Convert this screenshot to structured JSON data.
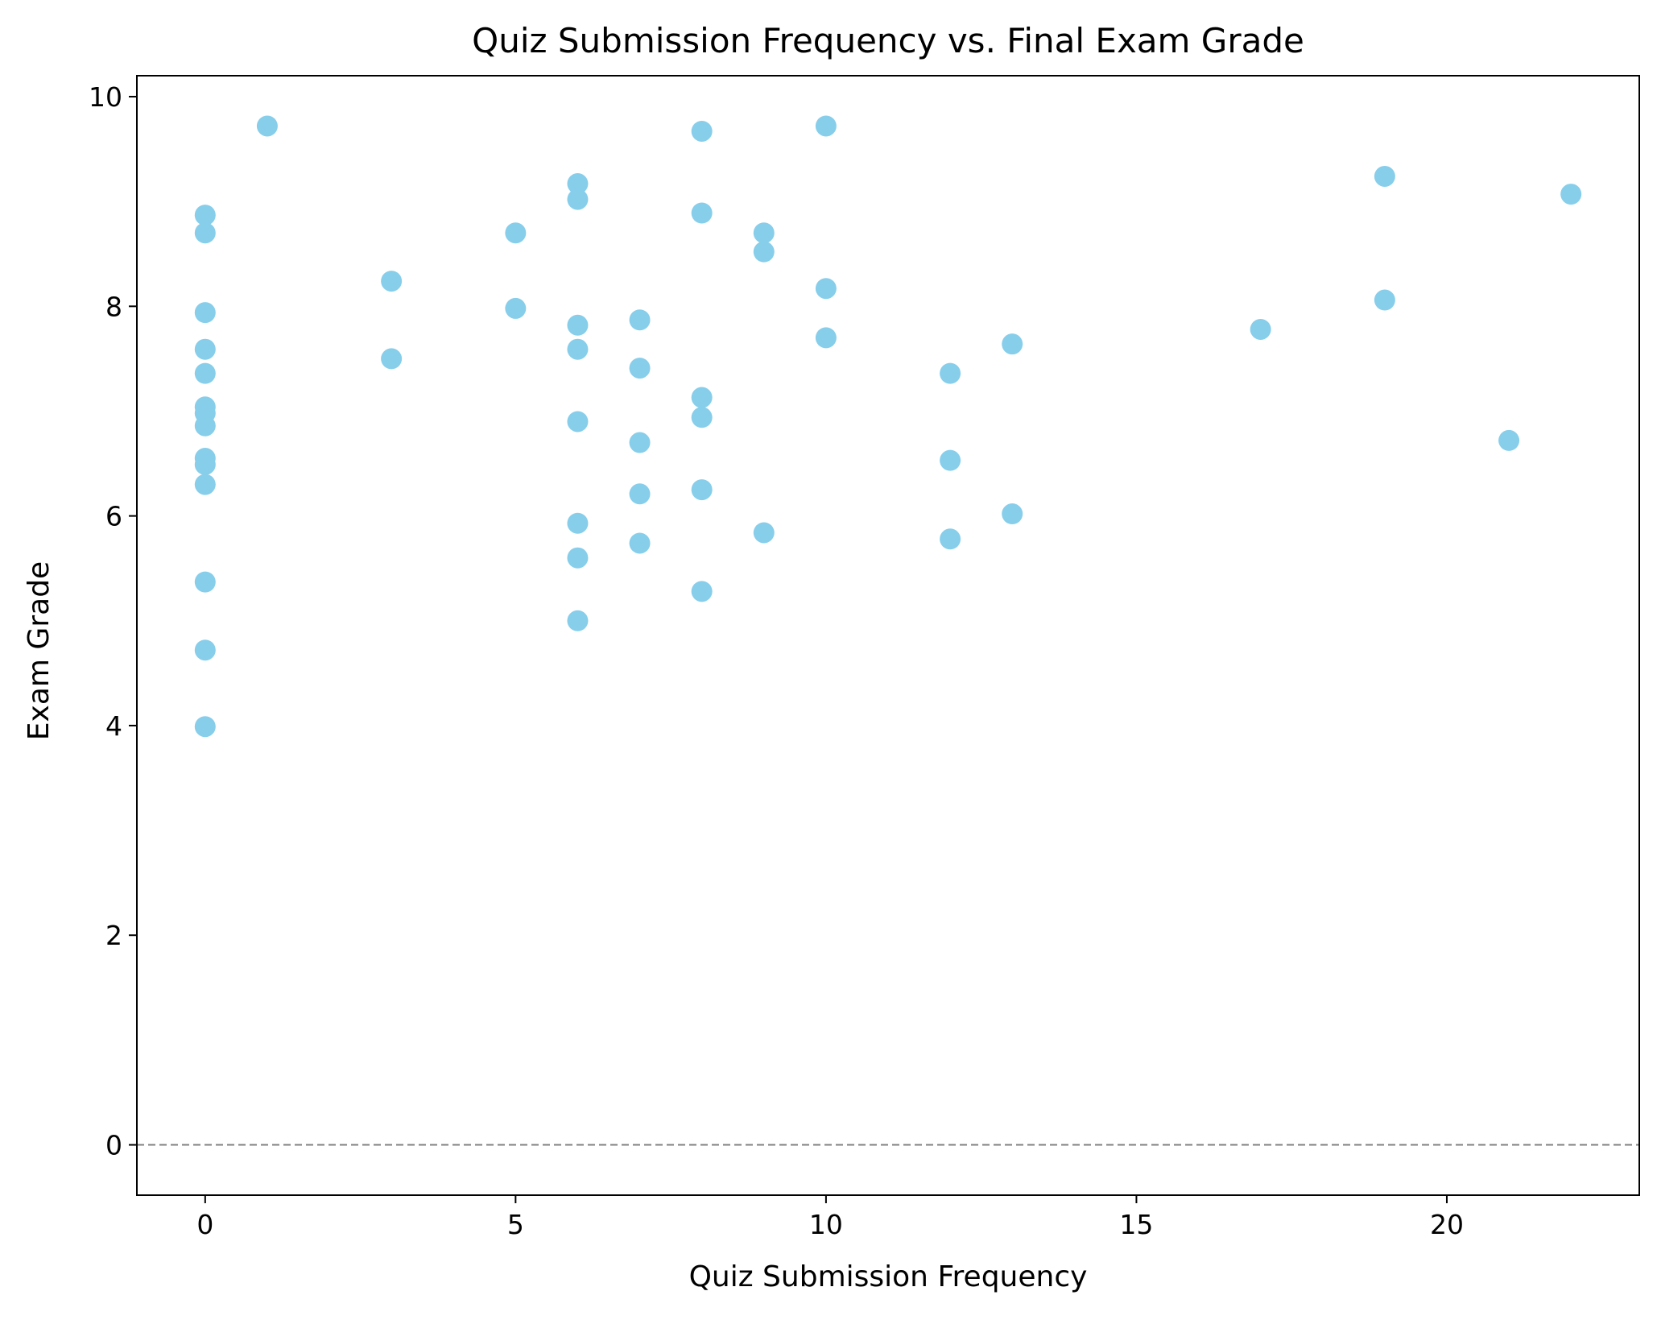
{
  "chart_data": {
    "type": "scatter",
    "title": "Quiz Submission Frequency vs. Final Exam Grade",
    "xlabel": "Quiz Submission Frequency",
    "ylabel": "Exam Grade",
    "xlim": [
      -1.1,
      23.1
    ],
    "ylim": [
      -0.48,
      10.2
    ],
    "xticks": [
      0,
      5,
      10,
      15,
      20
    ],
    "yticks": [
      0,
      2,
      4,
      6,
      8,
      10
    ],
    "grid": false,
    "reference_line": {
      "y": 0,
      "style": "dashed",
      "color": "#808080"
    },
    "marker_color": "#87ceeb",
    "series": [
      {
        "points": [
          [
            0,
            8.87
          ],
          [
            0,
            8.7
          ],
          [
            0,
            7.94
          ],
          [
            0,
            7.59
          ],
          [
            0,
            7.36
          ],
          [
            0,
            7.04
          ],
          [
            0,
            6.98
          ],
          [
            0,
            6.86
          ],
          [
            0,
            6.55
          ],
          [
            0,
            6.49
          ],
          [
            0,
            6.3
          ],
          [
            0,
            5.37
          ],
          [
            0,
            4.72
          ],
          [
            0,
            3.99
          ],
          [
            1,
            9.72
          ],
          [
            3,
            8.24
          ],
          [
            3,
            7.5
          ],
          [
            5,
            8.7
          ],
          [
            5,
            7.98
          ],
          [
            6,
            9.17
          ],
          [
            6,
            9.02
          ],
          [
            6,
            7.82
          ],
          [
            6,
            7.59
          ],
          [
            6,
            6.9
          ],
          [
            6,
            5.93
          ],
          [
            6,
            5.6
          ],
          [
            6,
            5.0
          ],
          [
            7,
            7.87
          ],
          [
            7,
            7.41
          ],
          [
            7,
            6.7
          ],
          [
            7,
            6.21
          ],
          [
            7,
            5.74
          ],
          [
            8,
            9.67
          ],
          [
            8,
            8.89
          ],
          [
            8,
            7.13
          ],
          [
            8,
            6.94
          ],
          [
            8,
            6.25
          ],
          [
            8,
            5.28
          ],
          [
            9,
            8.7
          ],
          [
            9,
            8.52
          ],
          [
            9,
            5.84
          ],
          [
            10,
            9.72
          ],
          [
            10,
            8.17
          ],
          [
            10,
            7.7
          ],
          [
            12,
            7.36
          ],
          [
            12,
            6.53
          ],
          [
            12,
            5.78
          ],
          [
            13,
            7.64
          ],
          [
            13,
            6.02
          ],
          [
            17,
            7.78
          ],
          [
            19,
            9.24
          ],
          [
            19,
            8.06
          ],
          [
            21,
            6.72
          ],
          [
            22,
            9.07
          ]
        ]
      }
    ]
  }
}
